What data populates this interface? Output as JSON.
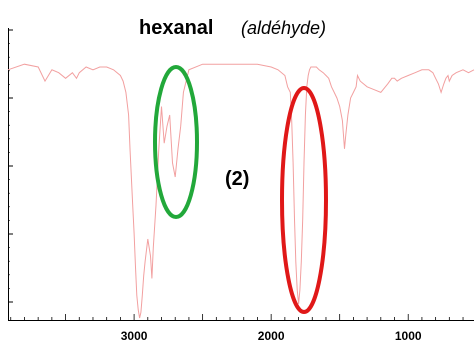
{
  "chart_data": {
    "type": "line",
    "title": "hexanal",
    "subtitle": "(aldéhyde)",
    "xlabel": "",
    "ylabel": "",
    "x_reversed": true,
    "xlim": [
      3920,
      520
    ],
    "ylim": [
      0,
      100
    ],
    "xticks": [
      3000,
      2000,
      1000
    ],
    "xtick_labels": [
      "3000",
      "2000",
      "1000"
    ],
    "grid": false,
    "series": [
      {
        "color": "#f2a0a0",
        "x": [
          3920,
          3800,
          3700,
          3650,
          3600,
          3550,
          3500,
          3450,
          3420,
          3400,
          3350,
          3300,
          3250,
          3200,
          3150,
          3100,
          3080,
          3060,
          3040,
          3030,
          3010,
          3000,
          2990,
          2980,
          2970,
          2960,
          2950,
          2940,
          2930,
          2920,
          2900,
          2880,
          2870,
          2860,
          2840,
          2820,
          2800,
          2780,
          2760,
          2740,
          2720,
          2700,
          2680,
          2660,
          2640,
          2600,
          2500,
          2400,
          2300,
          2200,
          2100,
          2000,
          1950,
          1900,
          1880,
          1860,
          1850,
          1840,
          1830,
          1820,
          1810,
          1800,
          1790,
          1780,
          1770,
          1760,
          1750,
          1740,
          1730,
          1720,
          1710,
          1700,
          1690,
          1680,
          1670,
          1650,
          1620,
          1600,
          1580,
          1560,
          1540,
          1520,
          1500,
          1480,
          1465,
          1455,
          1440,
          1420,
          1400,
          1380,
          1370,
          1350,
          1300,
          1250,
          1200,
          1150,
          1120,
          1100,
          1080,
          1050,
          1000,
          950,
          900,
          850,
          820,
          800,
          780,
          760,
          740,
          725,
          710,
          700,
          680,
          650,
          600,
          560,
          520
        ],
        "values": [
          88,
          90,
          89,
          84,
          88,
          87,
          85,
          87,
          85,
          87,
          89,
          88,
          89,
          89,
          88,
          86,
          84,
          80,
          72,
          60,
          40,
          30,
          18,
          8,
          3,
          0,
          2,
          8,
          15,
          20,
          28,
          22,
          14,
          25,
          40,
          60,
          75,
          62,
          68,
          72,
          55,
          50,
          60,
          68,
          80,
          88,
          90,
          90,
          90,
          90,
          90,
          89,
          88,
          86,
          82,
          80,
          70,
          55,
          35,
          20,
          10,
          5,
          10,
          20,
          35,
          55,
          72,
          82,
          86,
          88,
          89,
          89,
          89,
          89,
          89,
          88,
          87,
          86,
          85,
          82,
          80,
          78,
          75,
          70,
          60,
          65,
          72,
          78,
          80,
          82,
          86,
          84,
          82,
          81,
          80,
          83,
          85,
          85,
          84,
          85,
          86,
          87,
          88,
          88,
          87,
          85,
          83,
          80,
          83,
          85,
          86,
          84,
          86,
          87,
          88,
          87,
          88
        ]
      }
    ],
    "annotations": [
      {
        "text": "(2)",
        "x": 2280,
        "y": 41
      }
    ]
  },
  "colors": {
    "series_line": "#f2a0a0",
    "green_ellipse": "#22a83a",
    "red_ellipse": "#e01818",
    "axis": "#000000"
  }
}
